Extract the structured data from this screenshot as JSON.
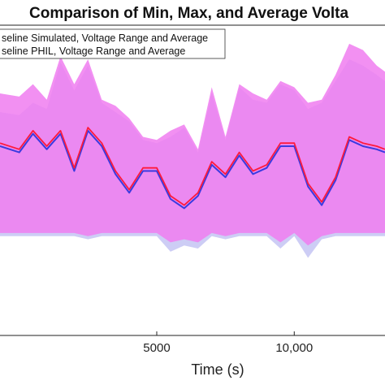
{
  "chart_data": {
    "type": "area",
    "title": "Comparison of Min, Max, and Average Volta",
    "xlabel": "Time (s)",
    "ylabel": "",
    "xlim": [
      -700,
      13300
    ],
    "ylim": [
      0,
      10
    ],
    "x_ticks": [
      {
        "value": 5000,
        "label": "5000"
      },
      {
        "value": 10000,
        "label": "10,000"
      }
    ],
    "grid": false,
    "legend_position": "top-left",
    "legend": [
      {
        "label": "seline Simulated, Voltage Range and Average",
        "color": "#9c9cf0"
      },
      {
        "label": "seline PHIL, Voltage Range and Average",
        "color": "#ff33aa"
      }
    ],
    "series": [
      {
        "name": "seline Simulated, Voltage Range and Average",
        "band_color": "#c8c8f4",
        "line_color": "#3a3ae0",
        "x": [
          -700,
          0,
          500,
          1000,
          1500,
          2000,
          2500,
          3000,
          3500,
          4000,
          4500,
          5000,
          5500,
          6000,
          6500,
          7000,
          7500,
          8000,
          8500,
          9000,
          9500,
          10000,
          10500,
          11000,
          11500,
          12000,
          12500,
          13000,
          13300
        ],
        "max": [
          7.2,
          7.1,
          7.5,
          7.3,
          8.8,
          7.9,
          8.7,
          7.5,
          7.2,
          6.9,
          6.3,
          6.2,
          6.4,
          6.7,
          5.9,
          7.8,
          6.3,
          8.0,
          7.6,
          7.5,
          8.1,
          7.9,
          7.3,
          7.5,
          8.2,
          8.9,
          8.7,
          8.4,
          8.2
        ],
        "avg": [
          6.1,
          5.9,
          6.5,
          6.0,
          6.5,
          5.3,
          6.6,
          6.1,
          5.2,
          4.6,
          5.3,
          5.3,
          4.4,
          4.1,
          4.5,
          5.5,
          5.1,
          5.8,
          5.2,
          5.4,
          6.1,
          6.1,
          4.8,
          4.2,
          5.0,
          6.3,
          6.1,
          6.0,
          5.9
        ],
        "min": [
          3.2,
          3.2,
          3.2,
          3.2,
          3.2,
          3.2,
          3.1,
          3.2,
          3.2,
          3.2,
          3.2,
          3.2,
          2.7,
          2.9,
          2.8,
          3.2,
          3.1,
          3.2,
          3.2,
          3.2,
          2.8,
          3.2,
          2.5,
          3.1,
          3.2,
          3.2,
          3.2,
          3.2,
          3.2
        ]
      },
      {
        "name": "seline PHIL, Voltage Range and Average",
        "band_color": "#f07cf0",
        "line_color": "#ff1a3c",
        "x": [
          -700,
          0,
          500,
          1000,
          1500,
          2000,
          2500,
          3000,
          3500,
          4000,
          4500,
          5000,
          5500,
          6000,
          6500,
          7000,
          7500,
          8000,
          8500,
          9000,
          9500,
          10000,
          10500,
          11000,
          11500,
          12000,
          12500,
          13000,
          13300
        ],
        "max": [
          7.8,
          7.7,
          8.1,
          7.6,
          9.0,
          8.1,
          8.9,
          7.6,
          7.4,
          7.0,
          6.4,
          6.3,
          6.6,
          6.8,
          6.0,
          8.0,
          6.4,
          8.1,
          7.8,
          7.6,
          8.2,
          8.0,
          7.5,
          7.6,
          8.4,
          9.4,
          9.2,
          8.7,
          8.5
        ],
        "avg": [
          6.2,
          6.0,
          6.6,
          6.1,
          6.6,
          5.4,
          6.7,
          6.2,
          5.3,
          4.7,
          5.4,
          5.4,
          4.5,
          4.2,
          4.6,
          5.6,
          5.2,
          5.9,
          5.3,
          5.5,
          6.2,
          6.2,
          4.9,
          4.3,
          5.1,
          6.4,
          6.2,
          6.1,
          6.0
        ],
        "min": [
          3.3,
          3.3,
          3.3,
          3.3,
          3.3,
          3.3,
          3.2,
          3.3,
          3.3,
          3.3,
          3.3,
          3.3,
          3.0,
          3.1,
          3.0,
          3.3,
          3.2,
          3.3,
          3.3,
          3.3,
          3.0,
          3.3,
          2.9,
          3.2,
          3.3,
          3.3,
          3.3,
          3.3,
          3.3
        ]
      }
    ]
  }
}
